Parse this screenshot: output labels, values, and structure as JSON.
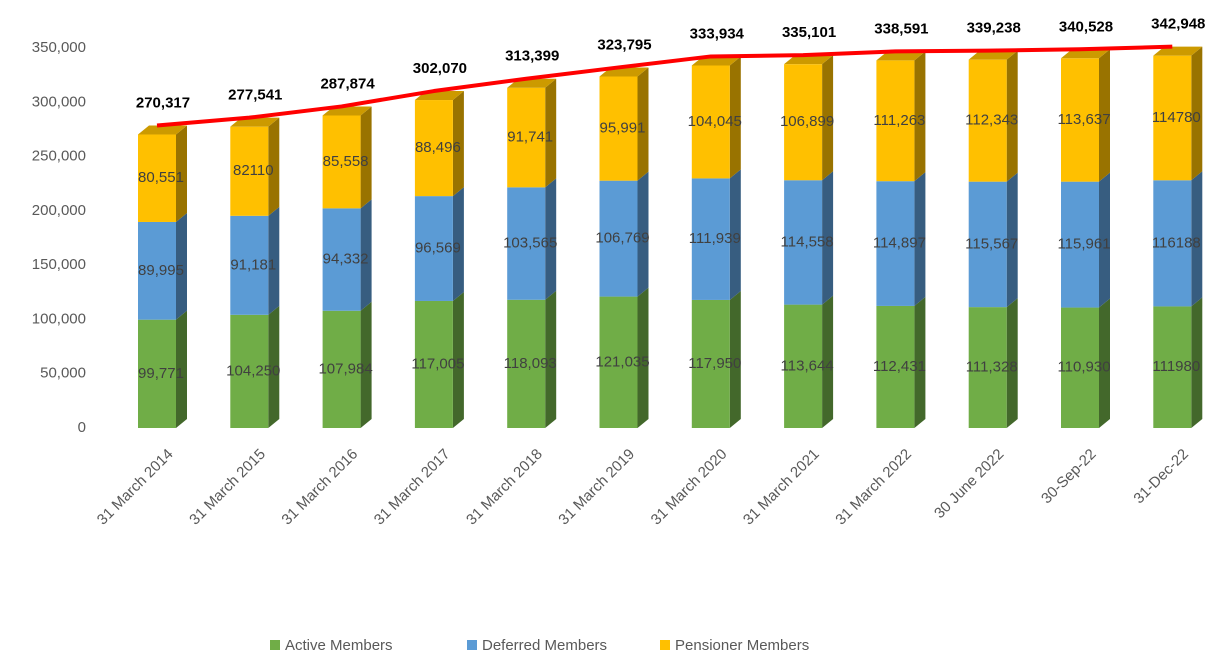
{
  "chart_data": {
    "type": "stacked-bar",
    "categories": [
      "31 March 2014",
      "31 March 2015",
      "31 March 2016",
      "31 March 2017",
      "31 March 2018",
      "31 March 2019",
      "31 March 2020",
      "31 March 2021",
      "31  March 2022",
      "30 June 2022",
      "30-Sep-22",
      "31-Dec-22"
    ],
    "series": [
      {
        "name": "Active Members",
        "color": "#70ad47",
        "values": [
          99771,
          104250,
          107984,
          117005,
          118093,
          121035,
          117950,
          113644,
          112431,
          111328,
          110930,
          111980
        ],
        "value_labels": [
          "99,771",
          "104,250",
          "107,984",
          "117,005",
          "118,093",
          "121,035",
          "117,950",
          "113,644",
          "112,431",
          "111,328",
          "110,930",
          "111980"
        ]
      },
      {
        "name": "Deferred Members",
        "color": "#5b9bd5",
        "values": [
          89995,
          91181,
          94332,
          96569,
          103565,
          106769,
          111939,
          114558,
          114897,
          115567,
          115961,
          116188
        ],
        "value_labels": [
          "89,995",
          "91,181",
          "94,332",
          "96,569",
          "103,565",
          "106,769",
          "111,939",
          "114,558",
          "114,897",
          "115,567",
          "115,961",
          "116188"
        ]
      },
      {
        "name": "Pensioner Members",
        "color": "#ffc000",
        "values": [
          80551,
          82110,
          85558,
          88496,
          91741,
          95991,
          104045,
          106899,
          111263,
          112343,
          113637,
          114780
        ],
        "value_labels": [
          "80,551",
          "82110",
          "85,558",
          "88,496",
          "91,741",
          "95,991",
          "104,045",
          "106,899",
          "111,263",
          "112,343",
          "113,637",
          "114780"
        ]
      }
    ],
    "totals": {
      "color": "#ff0000",
      "values": [
        270317,
        277541,
        287874,
        302070,
        313399,
        323795,
        333934,
        335101,
        338591,
        339238,
        340528,
        342948
      ],
      "value_labels": [
        "270,317",
        "277,541",
        "287,874",
        "302,070",
        "313,399",
        "323,795",
        "333,934",
        "335,101",
        "338,591",
        "339,238",
        "340,528",
        "342,948"
      ]
    },
    "ylim": [
      0,
      350000
    ],
    "yticks": [
      0,
      {
        "value": 50000,
        "label": "50,000"
      },
      {
        "value": 100000,
        "label": "100,000"
      },
      {
        "value": 150000,
        "label": "150,000"
      },
      {
        "value": 200000,
        "label": "200,000"
      },
      {
        "value": 250000,
        "label": "250,000"
      },
      {
        "value": 300000,
        "label": "300,000"
      },
      {
        "value": 350000,
        "label": "350,000"
      }
    ],
    "legend": "bottom"
  }
}
